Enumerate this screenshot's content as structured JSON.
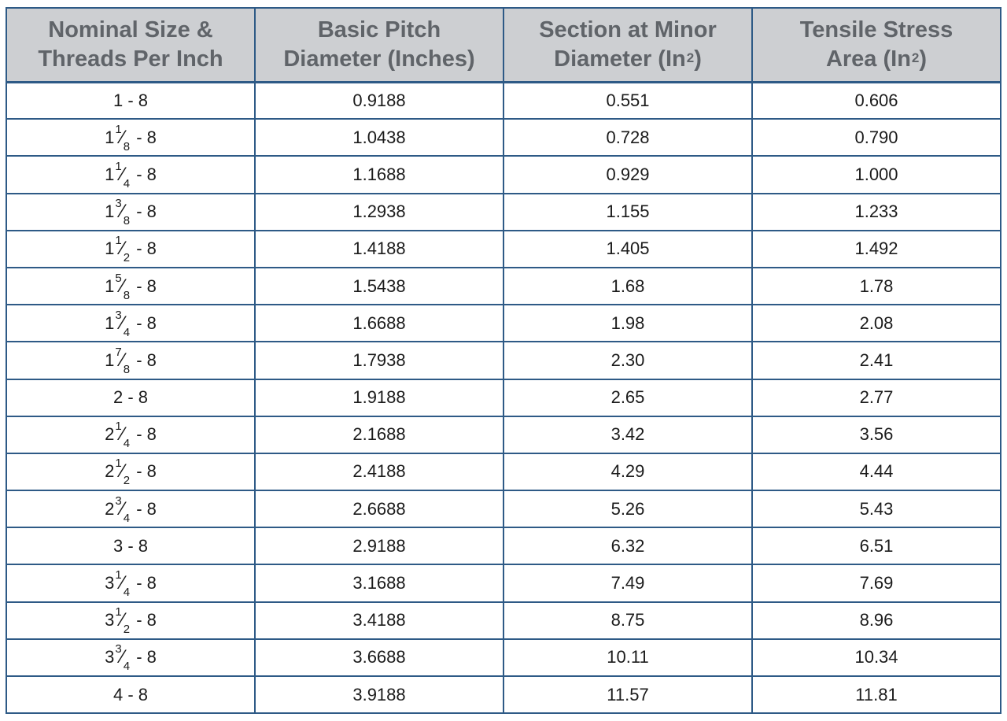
{
  "table": {
    "headers": [
      {
        "line1": "Nominal Size &",
        "line2": "Threads Per Inch",
        "sup": ""
      },
      {
        "line1": "Basic Pitch",
        "line2": "Diameter (Inches)",
        "sup": ""
      },
      {
        "line1": "Section at Minor",
        "line2": "Diameter (In",
        "sup": "2",
        "close": ")"
      },
      {
        "line1": "Tensile Stress",
        "line2": "Area (In",
        "sup": "2",
        "close": ")"
      }
    ],
    "rows": [
      {
        "whole": "1",
        "num": "",
        "den": "",
        "tpi": " - 8",
        "pitch": "0.9188",
        "minor": "0.551",
        "tensile": "0.606"
      },
      {
        "whole": "1",
        "num": "1",
        "den": "8",
        "tpi": " - 8",
        "pitch": "1.0438",
        "minor": "0.728",
        "tensile": "0.790"
      },
      {
        "whole": "1",
        "num": "1",
        "den": "4",
        "tpi": " - 8",
        "pitch": "1.1688",
        "minor": "0.929",
        "tensile": "1.000"
      },
      {
        "whole": "1",
        "num": "3",
        "den": "8",
        "tpi": " - 8",
        "pitch": "1.2938",
        "minor": "1.155",
        "tensile": "1.233"
      },
      {
        "whole": "1",
        "num": "1",
        "den": "2",
        "tpi": " - 8",
        "pitch": "1.4188",
        "minor": "1.405",
        "tensile": "1.492"
      },
      {
        "whole": "1",
        "num": "5",
        "den": "8",
        "tpi": " - 8",
        "pitch": "1.5438",
        "minor": "1.68",
        "tensile": "1.78"
      },
      {
        "whole": "1",
        "num": "3",
        "den": "4",
        "tpi": " - 8",
        "pitch": "1.6688",
        "minor": "1.98",
        "tensile": "2.08"
      },
      {
        "whole": "1",
        "num": "7",
        "den": "8",
        "tpi": " - 8",
        "pitch": "1.7938",
        "minor": "2.30",
        "tensile": "2.41"
      },
      {
        "whole": "2",
        "num": "",
        "den": "",
        "tpi": " - 8",
        "pitch": "1.9188",
        "minor": "2.65",
        "tensile": "2.77"
      },
      {
        "whole": "2",
        "num": "1",
        "den": "4",
        "tpi": " - 8",
        "pitch": "2.1688",
        "minor": "3.42",
        "tensile": "3.56"
      },
      {
        "whole": "2",
        "num": "1",
        "den": "2",
        "tpi": " - 8",
        "pitch": "2.4188",
        "minor": "4.29",
        "tensile": "4.44"
      },
      {
        "whole": "2",
        "num": "3",
        "den": "4",
        "tpi": " - 8",
        "pitch": "2.6688",
        "minor": "5.26",
        "tensile": "5.43"
      },
      {
        "whole": "3",
        "num": "",
        "den": "",
        "tpi": " - 8",
        "pitch": "2.9188",
        "minor": "6.32",
        "tensile": "6.51"
      },
      {
        "whole": "3",
        "num": "1",
        "den": "4",
        "tpi": " - 8",
        "pitch": "3.1688",
        "minor": "7.49",
        "tensile": "7.69"
      },
      {
        "whole": "3",
        "num": "1",
        "den": "2",
        "tpi": " - 8",
        "pitch": "3.4188",
        "minor": "8.75",
        "tensile": "8.96"
      },
      {
        "whole": "3",
        "num": "3",
        "den": "4",
        "tpi": " - 8",
        "pitch": "3.6688",
        "minor": "10.11",
        "tensile": "10.34"
      },
      {
        "whole": "4",
        "num": "",
        "den": "",
        "tpi": " - 8",
        "pitch": "3.9188",
        "minor": "11.57",
        "tensile": "11.81"
      }
    ]
  }
}
